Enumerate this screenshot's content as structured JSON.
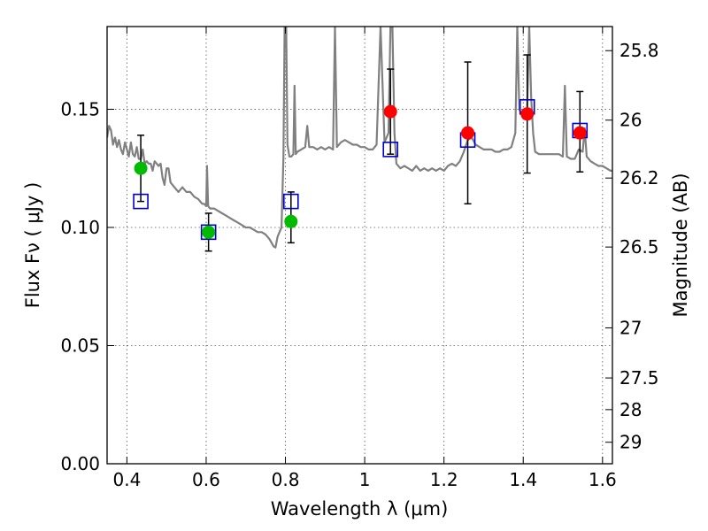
{
  "chart_data": {
    "type": "scatter",
    "xlabel": "Wavelength  λ (μm)",
    "ylabel": "Flux  Fν  ( μJy )",
    "y2label": "Magnitude (AB)",
    "xlim": [
      0.35,
      1.625
    ],
    "ylim": [
      0.0,
      0.185
    ],
    "grid": true,
    "colors": {
      "template": "#808080",
      "green": "#00bb00",
      "red": "#ff0000",
      "model_box": "#0000cc",
      "errorbar": "#000000"
    },
    "x_ticks": [
      {
        "value": 0.4,
        "label": "0.4"
      },
      {
        "value": 0.6,
        "label": "0.6"
      },
      {
        "value": 0.8,
        "label": "0.8"
      },
      {
        "value": 1.0,
        "label": "1"
      },
      {
        "value": 1.2,
        "label": "1.2"
      },
      {
        "value": 1.4,
        "label": "1.4"
      },
      {
        "value": 1.6,
        "label": "1.6"
      }
    ],
    "y_ticks": [
      {
        "value": 0.0,
        "label": "0.00"
      },
      {
        "value": 0.05,
        "label": "0.05"
      },
      {
        "value": 0.1,
        "label": "0.10"
      },
      {
        "value": 0.15,
        "label": "0.15"
      }
    ],
    "mag_ticks": [
      {
        "label": "25.8",
        "flux": 0.1748
      },
      {
        "label": "26",
        "flux": 0.1454
      },
      {
        "label": "26.2",
        "flux": 0.1209
      },
      {
        "label": "26.5",
        "flux": 0.0917
      },
      {
        "label": "27",
        "flux": 0.0575
      },
      {
        "label": "27.5",
        "flux": 0.0363
      },
      {
        "label": "28",
        "flux": 0.0229
      },
      {
        "label": "29",
        "flux": 0.0091
      }
    ],
    "template_spectrum": [
      [
        0.35,
        0.138
      ],
      [
        0.355,
        0.143
      ],
      [
        0.36,
        0.141
      ],
      [
        0.365,
        0.135
      ],
      [
        0.37,
        0.138
      ],
      [
        0.375,
        0.134
      ],
      [
        0.38,
        0.137
      ],
      [
        0.385,
        0.133
      ],
      [
        0.39,
        0.131
      ],
      [
        0.395,
        0.136
      ],
      [
        0.4,
        0.133
      ],
      [
        0.405,
        0.13
      ],
      [
        0.41,
        0.136
      ],
      [
        0.415,
        0.131
      ],
      [
        0.42,
        0.13
      ],
      [
        0.425,
        0.134
      ],
      [
        0.43,
        0.129
      ],
      [
        0.435,
        0.129
      ],
      [
        0.44,
        0.133
      ],
      [
        0.445,
        0.127
      ],
      [
        0.45,
        0.128
      ],
      [
        0.455,
        0.127
      ],
      [
        0.46,
        0.127
      ],
      [
        0.465,
        0.124
      ],
      [
        0.47,
        0.128
      ],
      [
        0.475,
        0.127
      ],
      [
        0.48,
        0.126
      ],
      [
        0.485,
        0.127
      ],
      [
        0.49,
        0.121
      ],
      [
        0.495,
        0.118
      ],
      [
        0.5,
        0.125
      ],
      [
        0.505,
        0.125
      ],
      [
        0.51,
        0.119
      ],
      [
        0.52,
        0.117
      ],
      [
        0.53,
        0.115
      ],
      [
        0.54,
        0.117
      ],
      [
        0.55,
        0.115
      ],
      [
        0.56,
        0.115
      ],
      [
        0.57,
        0.113
      ],
      [
        0.58,
        0.112
      ],
      [
        0.59,
        0.11
      ],
      [
        0.595,
        0.11
      ],
      [
        0.6,
        0.109
      ],
      [
        0.602,
        0.126
      ],
      [
        0.605,
        0.109
      ],
      [
        0.61,
        0.108
      ],
      [
        0.62,
        0.108
      ],
      [
        0.63,
        0.107
      ],
      [
        0.64,
        0.106
      ],
      [
        0.65,
        0.105
      ],
      [
        0.66,
        0.104
      ],
      [
        0.67,
        0.103
      ],
      [
        0.68,
        0.102
      ],
      [
        0.69,
        0.101
      ],
      [
        0.7,
        0.1
      ],
      [
        0.71,
        0.1
      ],
      [
        0.72,
        0.099
      ],
      [
        0.73,
        0.098
      ],
      [
        0.74,
        0.098
      ],
      [
        0.75,
        0.097
      ],
      [
        0.76,
        0.095
      ],
      [
        0.77,
        0.092
      ],
      [
        0.775,
        0.0915
      ],
      [
        0.78,
        0.096
      ],
      [
        0.785,
        0.098
      ],
      [
        0.79,
        0.1
      ],
      [
        0.795,
        0.13
      ],
      [
        0.798,
        0.185
      ],
      [
        0.802,
        0.185
      ],
      [
        0.805,
        0.135
      ],
      [
        0.81,
        0.13
      ],
      [
        0.815,
        0.13
      ],
      [
        0.82,
        0.131
      ],
      [
        0.823,
        0.16
      ],
      [
        0.826,
        0.131
      ],
      [
        0.83,
        0.132
      ],
      [
        0.84,
        0.133
      ],
      [
        0.85,
        0.134
      ],
      [
        0.855,
        0.143
      ],
      [
        0.86,
        0.134
      ],
      [
        0.87,
        0.134
      ],
      [
        0.88,
        0.133
      ],
      [
        0.89,
        0.134
      ],
      [
        0.9,
        0.133
      ],
      [
        0.91,
        0.134
      ],
      [
        0.92,
        0.133
      ],
      [
        0.925,
        0.185
      ],
      [
        0.93,
        0.134
      ],
      [
        0.94,
        0.136
      ],
      [
        0.95,
        0.137
      ],
      [
        0.96,
        0.136
      ],
      [
        0.97,
        0.135
      ],
      [
        0.98,
        0.135
      ],
      [
        0.99,
        0.134
      ],
      [
        1.0,
        0.134
      ],
      [
        1.01,
        0.133
      ],
      [
        1.02,
        0.133
      ],
      [
        1.03,
        0.135
      ],
      [
        1.04,
        0.185
      ],
      [
        1.05,
        0.136
      ],
      [
        1.06,
        0.14
      ],
      [
        1.065,
        0.185
      ],
      [
        1.07,
        0.185
      ],
      [
        1.075,
        0.14
      ],
      [
        1.08,
        0.127
      ],
      [
        1.09,
        0.125
      ],
      [
        1.1,
        0.126
      ],
      [
        1.11,
        0.125
      ],
      [
        1.12,
        0.124
      ],
      [
        1.13,
        0.126
      ],
      [
        1.14,
        0.124
      ],
      [
        1.15,
        0.125
      ],
      [
        1.16,
        0.124
      ],
      [
        1.17,
        0.125
      ],
      [
        1.18,
        0.124
      ],
      [
        1.19,
        0.125
      ],
      [
        1.2,
        0.124
      ],
      [
        1.21,
        0.126
      ],
      [
        1.22,
        0.127
      ],
      [
        1.23,
        0.126
      ],
      [
        1.24,
        0.128
      ],
      [
        1.25,
        0.132
      ],
      [
        1.26,
        0.137
      ],
      [
        1.27,
        0.138
      ],
      [
        1.28,
        0.135
      ],
      [
        1.29,
        0.134
      ],
      [
        1.3,
        0.133
      ],
      [
        1.31,
        0.133
      ],
      [
        1.32,
        0.133
      ],
      [
        1.33,
        0.132
      ],
      [
        1.34,
        0.132
      ],
      [
        1.35,
        0.133
      ],
      [
        1.36,
        0.133
      ],
      [
        1.37,
        0.134
      ],
      [
        1.38,
        0.14
      ],
      [
        1.385,
        0.185
      ],
      [
        1.39,
        0.15
      ],
      [
        1.395,
        0.148
      ],
      [
        1.4,
        0.148
      ],
      [
        1.405,
        0.147
      ],
      [
        1.41,
        0.15
      ],
      [
        1.415,
        0.185
      ],
      [
        1.42,
        0.155
      ],
      [
        1.425,
        0.14
      ],
      [
        1.43,
        0.132
      ],
      [
        1.44,
        0.131
      ],
      [
        1.45,
        0.131
      ],
      [
        1.46,
        0.131
      ],
      [
        1.47,
        0.131
      ],
      [
        1.48,
        0.131
      ],
      [
        1.49,
        0.131
      ],
      [
        1.5,
        0.13
      ],
      [
        1.505,
        0.16
      ],
      [
        1.51,
        0.13
      ],
      [
        1.52,
        0.129
      ],
      [
        1.53,
        0.129
      ],
      [
        1.54,
        0.133
      ],
      [
        1.55,
        0.132
      ],
      [
        1.555,
        0.142
      ],
      [
        1.56,
        0.13
      ],
      [
        1.57,
        0.128
      ],
      [
        1.58,
        0.127
      ],
      [
        1.59,
        0.126
      ],
      [
        1.6,
        0.126
      ],
      [
        1.61,
        0.125
      ],
      [
        1.62,
        0.124
      ],
      [
        1.625,
        0.124
      ]
    ],
    "observed": [
      {
        "x": 0.435,
        "y": 0.125,
        "yerr_low": 0.014,
        "yerr_high": 0.014,
        "color": "green"
      },
      {
        "x": 0.606,
        "y": 0.098,
        "yerr_low": 0.008,
        "yerr_high": 0.008,
        "color": "green"
      },
      {
        "x": 0.814,
        "y": 0.1025,
        "yerr_low": 0.009,
        "yerr_high": 0.0125,
        "color": "green"
      },
      {
        "x": 1.065,
        "y": 0.149,
        "yerr_low": 0.018,
        "yerr_high": 0.018,
        "color": "red"
      },
      {
        "x": 1.26,
        "y": 0.14,
        "yerr_low": 0.03,
        "yerr_high": 0.03,
        "color": "red"
      },
      {
        "x": 1.41,
        "y": 0.148,
        "yerr_low": 0.025,
        "yerr_high": 0.025,
        "color": "red"
      },
      {
        "x": 1.543,
        "y": 0.14,
        "yerr_low": 0.0165,
        "yerr_high": 0.0175,
        "color": "red"
      }
    ],
    "model_points": [
      {
        "x": 0.435,
        "y": 0.111
      },
      {
        "x": 0.606,
        "y": 0.098
      },
      {
        "x": 0.814,
        "y": 0.111
      },
      {
        "x": 1.065,
        "y": 0.133
      },
      {
        "x": 1.26,
        "y": 0.137
      },
      {
        "x": 1.41,
        "y": 0.151
      },
      {
        "x": 1.543,
        "y": 0.141
      }
    ]
  }
}
